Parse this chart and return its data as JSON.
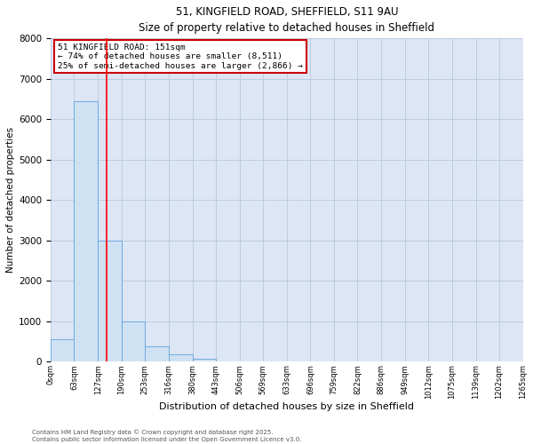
{
  "title_line1": "51, KINGFIELD ROAD, SHEFFIELD, S11 9AU",
  "title_line2": "Size of property relative to detached houses in Sheffield",
  "xlabel": "Distribution of detached houses by size in Sheffield",
  "ylabel": "Number of detached properties",
  "bin_labels": [
    "0sqm",
    "63sqm",
    "127sqm",
    "190sqm",
    "253sqm",
    "316sqm",
    "380sqm",
    "443sqm",
    "506sqm",
    "569sqm",
    "633sqm",
    "696sqm",
    "759sqm",
    "822sqm",
    "886sqm",
    "949sqm",
    "1012sqm",
    "1075sqm",
    "1139sqm",
    "1202sqm",
    "1265sqm"
  ],
  "bin_edges": [
    0,
    63,
    127,
    190,
    253,
    316,
    380,
    443,
    506,
    569,
    633,
    696,
    759,
    822,
    886,
    949,
    1012,
    1075,
    1139,
    1202,
    1265
  ],
  "bar_heights": [
    550,
    6450,
    3000,
    1000,
    380,
    170,
    60,
    0,
    0,
    0,
    0,
    0,
    0,
    0,
    0,
    0,
    0,
    0,
    0,
    0
  ],
  "bar_color": "#cfe2f3",
  "bar_edge_color": "#6fa8dc",
  "ylim": [
    0,
    8000
  ],
  "yticks": [
    0,
    1000,
    2000,
    3000,
    4000,
    5000,
    6000,
    7000,
    8000
  ],
  "red_line_x": 151,
  "annotation_title": "51 KINGFIELD ROAD: 151sqm",
  "annotation_line2": "← 74% of detached houses are smaller (8,511)",
  "annotation_line3": "25% of semi-detached houses are larger (2,866) →",
  "annotation_box_color": "#ffffff",
  "annotation_box_edge_color": "#cc0000",
  "footer_line1": "Contains HM Land Registry data © Crown copyright and database right 2025.",
  "footer_line2": "Contains public sector information licensed under the Open Government Licence v3.0.",
  "background_color": "#ffffff",
  "plot_bg_color": "#dce6f5",
  "grid_color": "#b8c8dc"
}
